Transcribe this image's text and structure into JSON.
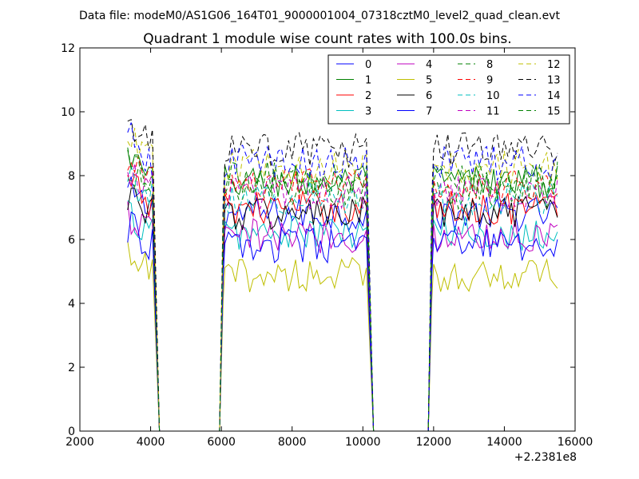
{
  "suptitle": "Data file: modeM0/AS1G06_164T01_9000001004_07318cztM0_level2_quad_clean.evt",
  "chart_data": {
    "type": "line",
    "title": "Quadrant 1 module wise count rates with 100.0s bins.",
    "xlabel": "",
    "ylabel": "",
    "x_offset_label": "+2.2381e8",
    "xlim": [
      2000,
      16000
    ],
    "ylim": [
      0,
      12
    ],
    "xticks": [
      2000,
      4000,
      6000,
      8000,
      10000,
      12000,
      14000,
      16000
    ],
    "yticks": [
      0,
      2,
      4,
      6,
      8,
      10,
      12
    ],
    "legend_position": "top-right",
    "legend_columns": 4,
    "segments": [
      {
        "x_start": 3350,
        "x_end": 4100
      },
      {
        "x_start": 6100,
        "x_end": 10150
      },
      {
        "x_start": 12000,
        "x_end": 15550
      }
    ],
    "drop_to_zero_x": [
      [
        4100,
        4250,
        5950,
        6100
      ],
      [
        10150,
        10300,
        11850,
        12000
      ]
    ],
    "series": [
      {
        "name": "0",
        "color": "#0000ff",
        "dash": "solid",
        "level": 6.8
      },
      {
        "name": "1",
        "color": "#008000",
        "dash": "solid",
        "level": 7.8
      },
      {
        "name": "2",
        "color": "#ff0000",
        "dash": "solid",
        "level": 7.0
      },
      {
        "name": "3",
        "color": "#00bfbf",
        "dash": "solid",
        "level": 6.2
      },
      {
        "name": "4",
        "color": "#bf00bf",
        "dash": "solid",
        "level": 6.1
      },
      {
        "name": "5",
        "color": "#bfbf00",
        "dash": "solid",
        "level": 4.9
      },
      {
        "name": "6",
        "color": "#000000",
        "dash": "solid",
        "level": 6.8
      },
      {
        "name": "7",
        "color": "#0000ff",
        "dash": "solid",
        "level": 5.8
      },
      {
        "name": "8",
        "color": "#008000",
        "dash": "dashed",
        "level": 7.5
      },
      {
        "name": "9",
        "color": "#ff0000",
        "dash": "dashed",
        "level": 7.7
      },
      {
        "name": "10",
        "color": "#00bfbf",
        "dash": "dashed",
        "level": 7.3
      },
      {
        "name": "11",
        "color": "#bf00bf",
        "dash": "dashed",
        "level": 7.5
      },
      {
        "name": "12",
        "color": "#bfbf00",
        "dash": "dashed",
        "level": 8.3
      },
      {
        "name": "13",
        "color": "#000000",
        "dash": "dashed",
        "level": 8.8
      },
      {
        "name": "14",
        "color": "#0000ff",
        "dash": "dashed",
        "level": 8.4
      },
      {
        "name": "15",
        "color": "#008000",
        "dash": "dashed",
        "level": 7.9
      }
    ]
  }
}
